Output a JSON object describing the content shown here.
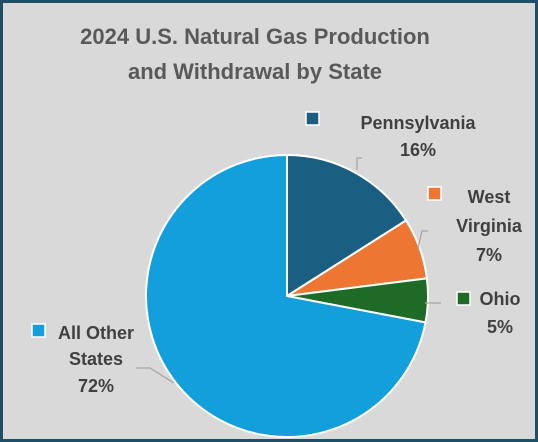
{
  "chart_data": {
    "type": "pie",
    "title_lines": [
      "2024 U.S. Natural Gas Production",
      "and Withdrawal by State"
    ],
    "slices": [
      {
        "name": "Pennsylvania",
        "value": 16,
        "label_lines": [
          "Pennsylvania",
          "16%"
        ],
        "color": "#1a5f82"
      },
      {
        "name": "West Virginia",
        "value": 7,
        "label_lines": [
          "West",
          "Virginia",
          "7%"
        ],
        "color": "#ed7632"
      },
      {
        "name": "Ohio",
        "value": 5,
        "label_lines": [
          "Ohio",
          "5%"
        ],
        "color": "#1d6b27"
      },
      {
        "name": "All Other States",
        "value": 72,
        "label_lines": [
          "All Other",
          "States",
          "72%"
        ],
        "color": "#139fdb"
      }
    ],
    "start_angle_deg": 0,
    "direction": "clockwise",
    "slice_border_color": "#ffffff"
  }
}
